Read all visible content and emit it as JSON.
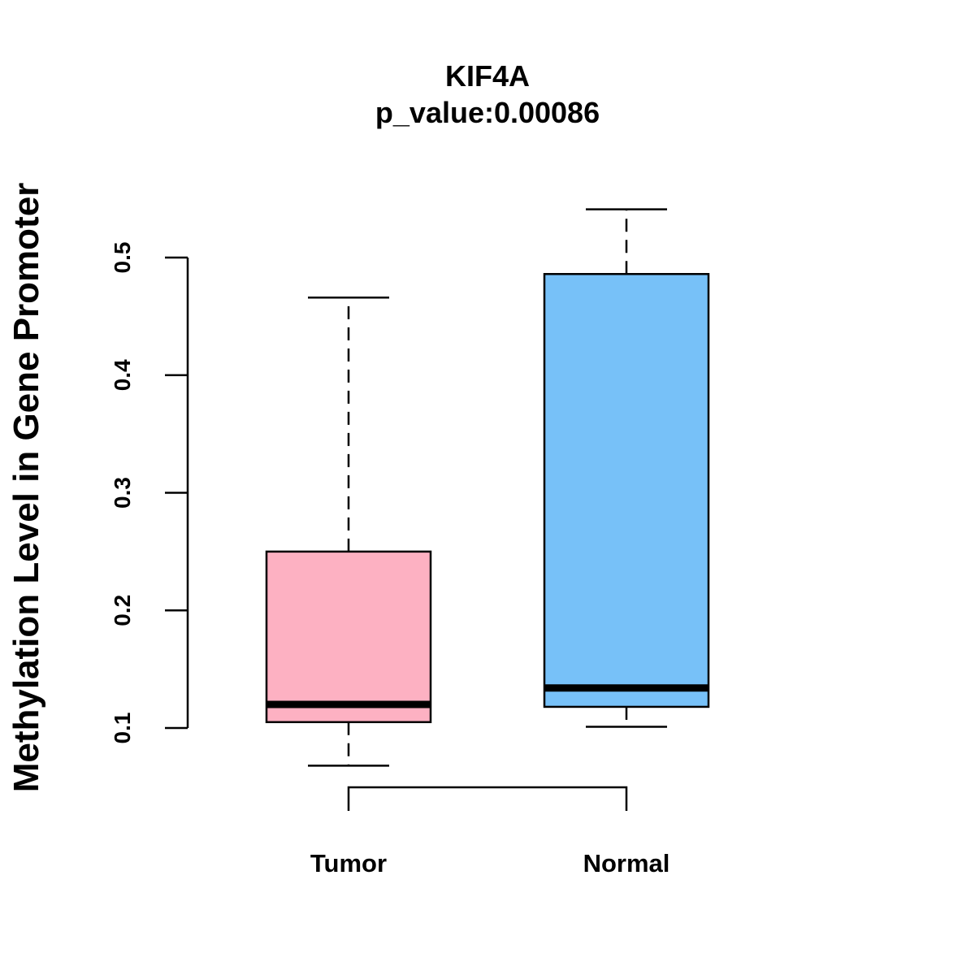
{
  "chart_data": {
    "type": "boxplot",
    "title": "KIF4A",
    "subtitle": "p_value:0.00086",
    "xlabel": "",
    "ylabel": "Methylation Level in Gene Promoter",
    "yticks": [
      "0.1",
      "0.2",
      "0.3",
      "0.4",
      "0.5"
    ],
    "ylim": [
      0.1,
      0.5
    ],
    "categories": [
      "Tumor",
      "Normal"
    ],
    "series": [
      {
        "name": "Tumor",
        "fill": "#FDB1C2",
        "whisker_low": 0.068,
        "q1": 0.105,
        "median": 0.12,
        "q3": 0.25,
        "whisker_high": 0.466
      },
      {
        "name": "Normal",
        "fill": "#77C1F8",
        "whisker_low": 0.101,
        "q1": 0.118,
        "median": 0.134,
        "q3": 0.486,
        "whisker_high": 0.541
      }
    ],
    "comparison_bracket": [
      "Tumor",
      "Normal"
    ],
    "grid": false,
    "legend": "none"
  }
}
